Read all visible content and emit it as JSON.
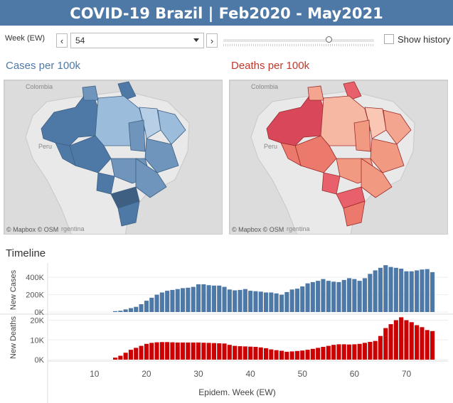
{
  "title": "COVID-19 Brazil | Feb2020 - May2021",
  "controls": {
    "week_label": "Week (EW)",
    "prev_icon": "chevron-left-icon",
    "next_icon": "chevron-right-icon",
    "prev_glyph": "‹",
    "next_glyph": "›",
    "selected_week": "54",
    "slider_fraction": 0.7,
    "show_history_label": "Show history",
    "show_history_checked": false
  },
  "maps": {
    "cases": {
      "title": "Cases per 100k",
      "title_color": "#4e79a7",
      "labels": {
        "colombia": "Colombia",
        "peru": "Peru",
        "argentina": "rgentina"
      },
      "attribution": "© Mapbox © OSM"
    },
    "deaths": {
      "title": "Deaths per 100k",
      "title_color": "#c0392b",
      "labels": {
        "colombia": "Colombia",
        "peru": "Peru",
        "argentina": "rgentina"
      },
      "attribution": "© Mapbox © OSM"
    }
  },
  "timeline_title": "Timeline",
  "chart_data": {
    "type": "bar",
    "xlabel": "Epidem. Week (EW)",
    "xlim": [
      1,
      78
    ],
    "x_ticks": [
      "10",
      "20",
      "30",
      "40",
      "50",
      "60",
      "70"
    ],
    "weeks": [
      14,
      15,
      16,
      17,
      18,
      19,
      20,
      21,
      22,
      23,
      24,
      25,
      26,
      27,
      28,
      29,
      30,
      31,
      32,
      33,
      34,
      35,
      36,
      37,
      38,
      39,
      40,
      41,
      42,
      43,
      44,
      45,
      46,
      47,
      48,
      49,
      50,
      51,
      52,
      53,
      54,
      55,
      56,
      57,
      58,
      59,
      60,
      61,
      62,
      63,
      64,
      65,
      66,
      67,
      68,
      69,
      70,
      71,
      72,
      73,
      74,
      75
    ],
    "series": [
      {
        "name": "New Cases",
        "color": "#4e79a7",
        "ylim": [
          0,
          500000
        ],
        "y_ticks": [
          "0K",
          "200K",
          "400K"
        ],
        "values": [
          10000,
          15000,
          30000,
          45000,
          60000,
          90000,
          130000,
          165000,
          200000,
          225000,
          245000,
          255000,
          265000,
          275000,
          280000,
          290000,
          320000,
          320000,
          310000,
          305000,
          305000,
          290000,
          260000,
          250000,
          255000,
          265000,
          245000,
          240000,
          235000,
          225000,
          225000,
          215000,
          200000,
          230000,
          260000,
          270000,
          295000,
          330000,
          345000,
          360000,
          380000,
          360000,
          350000,
          345000,
          370000,
          390000,
          380000,
          360000,
          390000,
          440000,
          480000,
          510000,
          540000,
          520000,
          510000,
          500000,
          470000,
          470000,
          480000,
          490000,
          495000,
          460000
        ]
      },
      {
        "name": "New Deaths",
        "color": "#cc0000",
        "ylim": [
          0,
          22000
        ],
        "y_ticks": [
          "0K",
          "10K",
          "20K"
        ],
        "values": [
          1000,
          2000,
          3500,
          5000,
          6000,
          7000,
          8000,
          8500,
          8800,
          8900,
          8900,
          8800,
          8700,
          8700,
          8700,
          8700,
          8700,
          8600,
          8500,
          8400,
          8300,
          8200,
          7500,
          7000,
          6800,
          6700,
          6600,
          6500,
          6200,
          5800,
          5200,
          4800,
          4500,
          4000,
          4200,
          4400,
          4600,
          5000,
          5500,
          6000,
          6500,
          7000,
          7500,
          7800,
          7800,
          7700,
          7800,
          8000,
          8500,
          9000,
          9500,
          12000,
          16000,
          18000,
          20000,
          21500,
          20000,
          19000,
          17500,
          16500,
          15000,
          14500
        ]
      }
    ]
  }
}
